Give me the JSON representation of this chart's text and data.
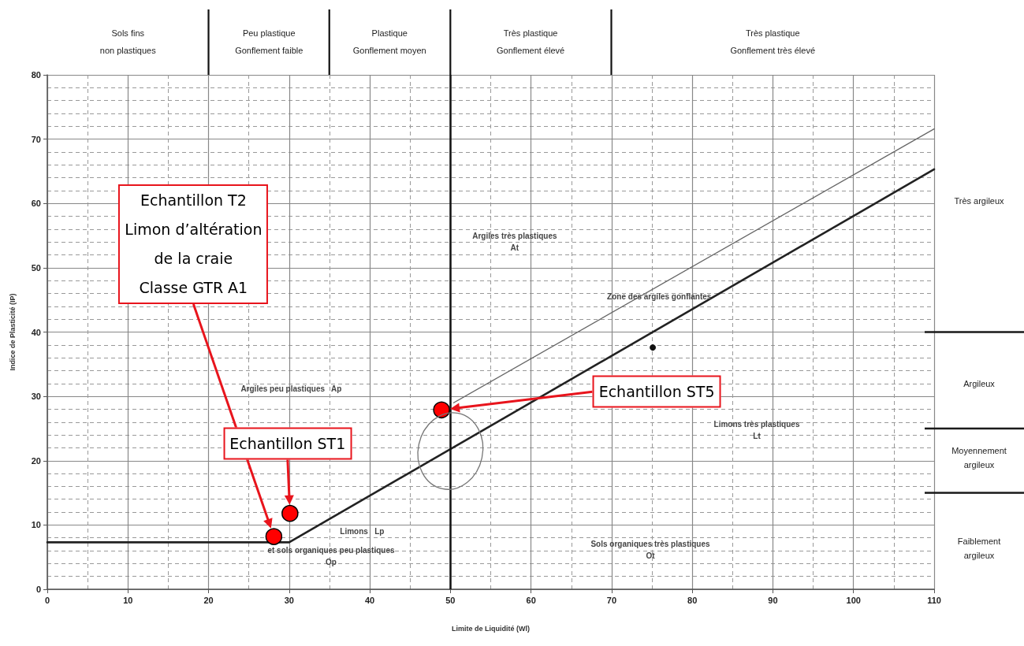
{
  "chart_data": {
    "type": "scatter",
    "xlabel": "Limite de Liquidité (Wl)",
    "ylabel": "Indice de Plasticité (IP)",
    "xlim": [
      0,
      110
    ],
    "xticks": [
      0,
      10,
      20,
      30,
      40,
      50,
      60,
      70,
      80,
      90,
      100,
      110
    ],
    "ylim": [
      0,
      80
    ],
    "yticks": [
      0,
      10,
      20,
      30,
      40,
      50,
      60,
      70,
      80
    ],
    "grid": true,
    "series": [
      {
        "type": "line",
        "color": "#222222",
        "x": [
          0,
          30,
          110
        ],
        "values": [
          7.3,
          7.3,
          65.3
        ]
      },
      {
        "type": "line",
        "color": "#666666",
        "x": [
          50.4,
          110
        ],
        "values": [
          29,
          71.6
        ]
      },
      {
        "color": "#111111",
        "x": [
          75.1
        ],
        "values": [
          37.6
        ]
      },
      {
        "color": "#ff0000",
        "x": [
          28.1,
          30.1,
          48.9
        ],
        "values": [
          8.2,
          11.8,
          27.9
        ]
      }
    ],
    "ref_lines": [
      {
        "axis": "x",
        "value": 50,
        "color": "#111111"
      }
    ],
    "annotations": [
      "Echantillon T2\nLimon d’altération\nde la craie\nClasse GTR A1",
      "Echantillon ST1",
      "Echantillon ST5",
      "Argiles très plastiques\nAt",
      "Zone des argiles gonflantes",
      "Argiles peu plastiques   Ap",
      "Limons très plastiques\nLt",
      "Limons   Lp",
      "et sols organiques peu plastiques\nOp",
      "Sols organiques très plastiques\nOt",
      "Sols fins\nnon plastiques",
      "Peu plastique\nGonflement faible",
      "Plastique\nGonflement moyen",
      "Très plastique\nGonflement élevé",
      "Très plastique\nGonflement très élevé",
      "Très argileux",
      "Argileux",
      "Moyennement\nargileux",
      "Faiblement\nargileux"
    ]
  }
}
